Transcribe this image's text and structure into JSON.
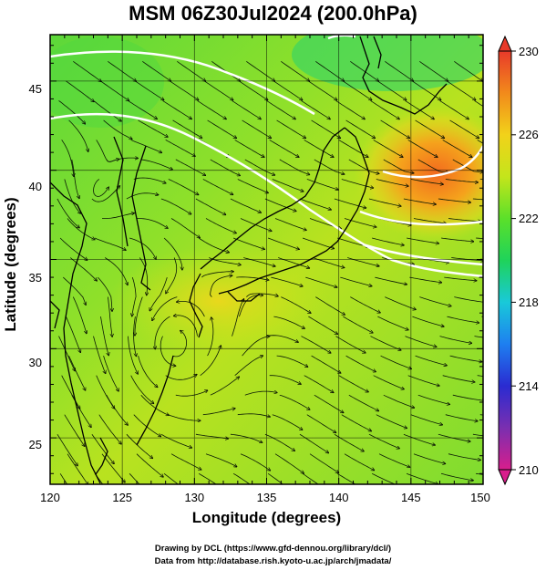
{
  "title": "MSM 06Z30Jul2024 (200.0hPa)",
  "axes": {
    "xlabel": "Longitude (degrees)",
    "ylabel": "Latitude  (degrees)",
    "x_ticks": [
      "120",
      "125",
      "130",
      "135",
      "140",
      "145",
      "150"
    ],
    "y_ticks": [
      "25",
      "30",
      "35",
      "40",
      "45"
    ],
    "xlim": [
      120,
      150
    ],
    "ylim": [
      22.4,
      47.6
    ]
  },
  "colorbar": {
    "labels": [
      "230",
      "226",
      "222",
      "218",
      "214",
      "210"
    ],
    "range": [
      210,
      230
    ],
    "colors": [
      "#d81e8c",
      "#7a2fb0",
      "#2a2bd1",
      "#1e7ff0",
      "#19c9d9",
      "#1fd35a",
      "#5be02a",
      "#c4e51b",
      "#f2d21a",
      "#f28a1b",
      "#e83a2a"
    ]
  },
  "credits": {
    "line1": "Drawing by DCL (https://www.gfd-dennou.org/library/dcl/)",
    "line2": "Data from http://database.rish.kyoto-u.ac.jp/arch/jmadata/"
  }
}
